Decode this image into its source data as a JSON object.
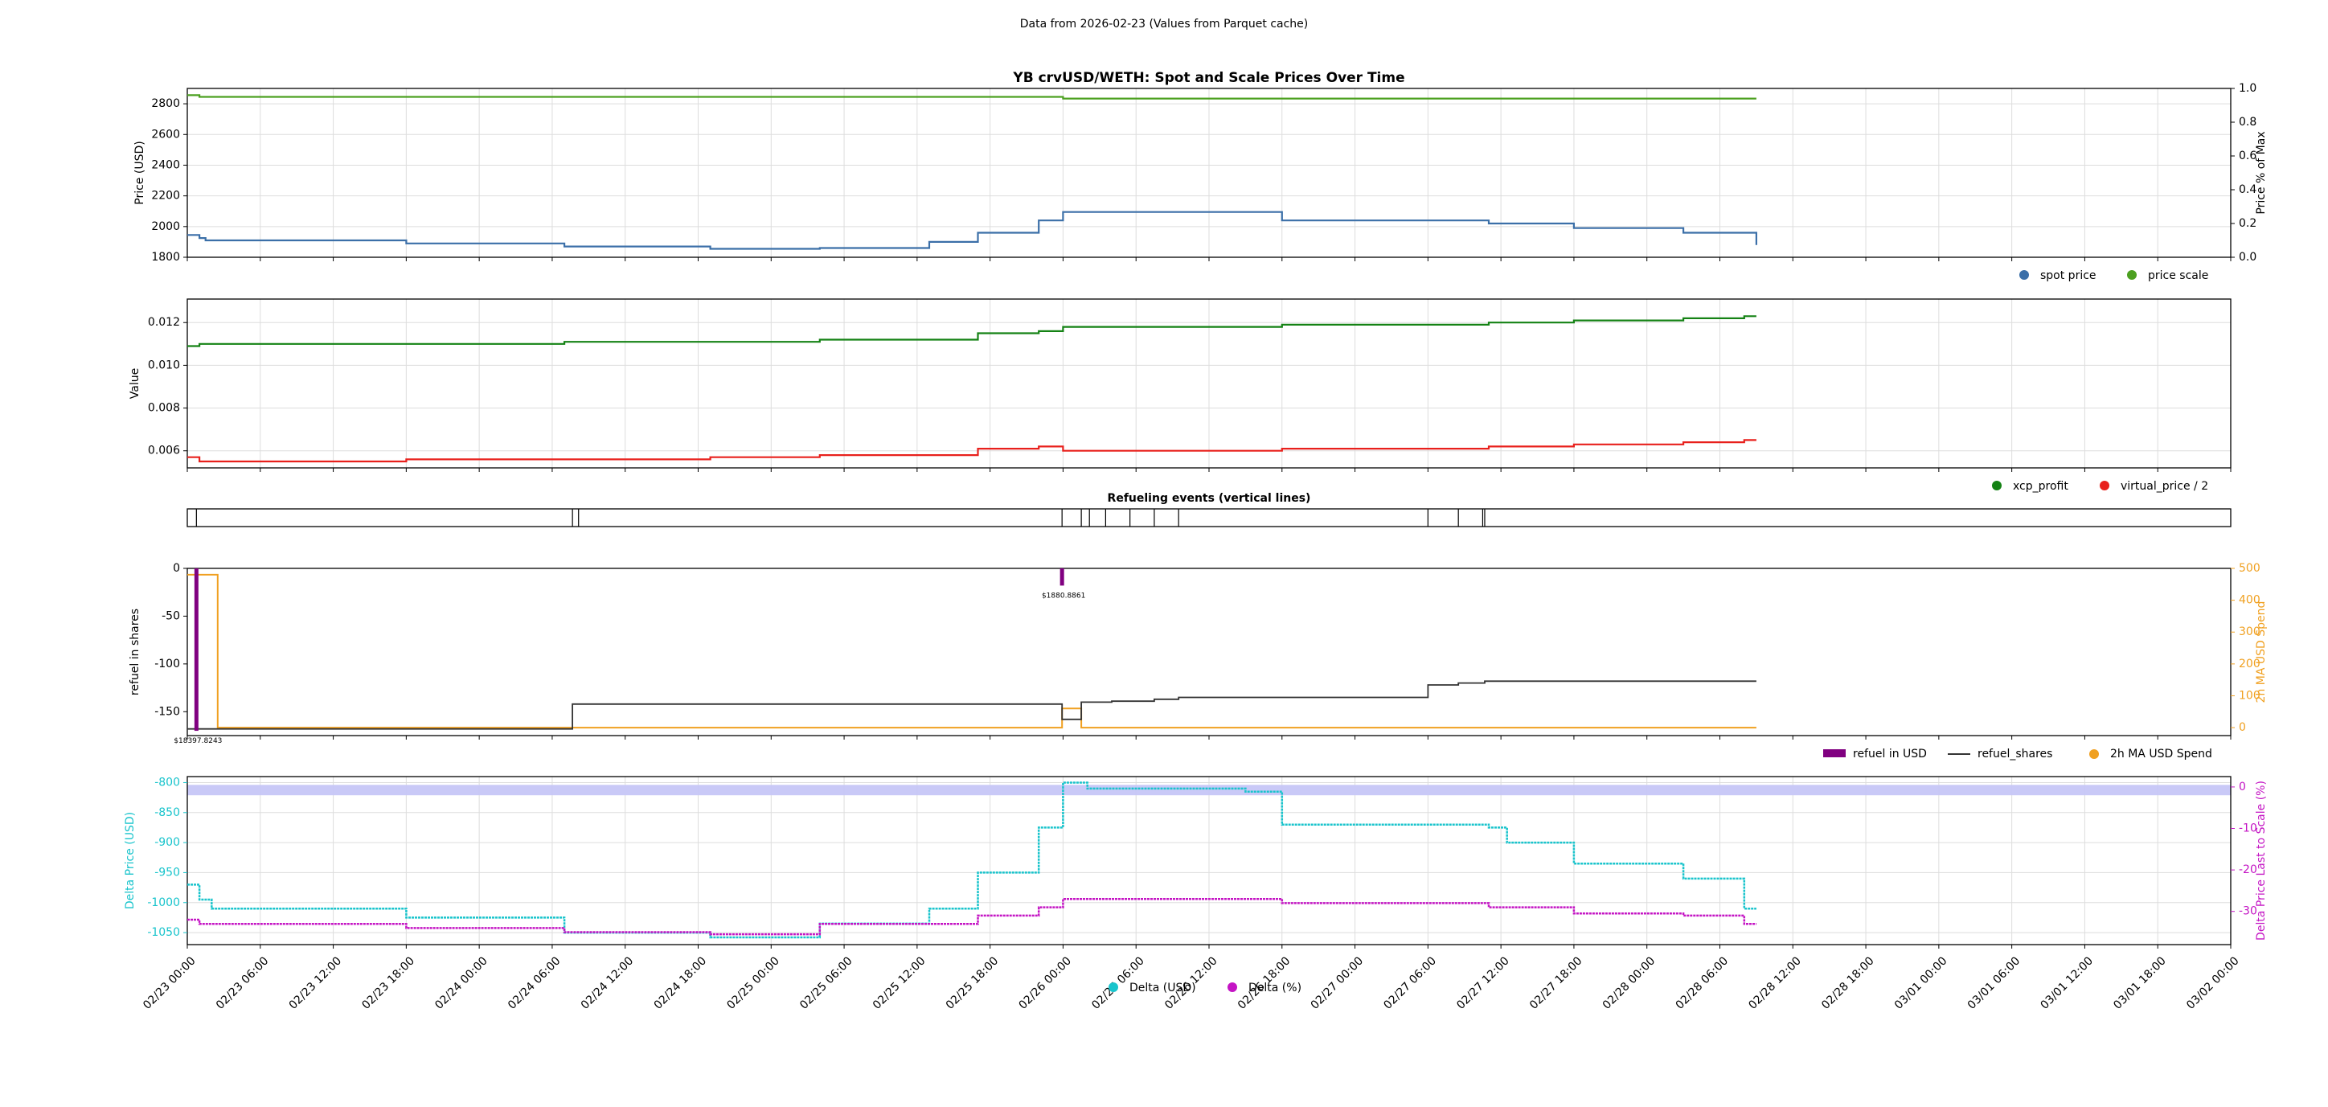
{
  "header": {
    "data_note": "Data from 2026-02-23 (Values from Parquet cache)"
  },
  "colors": {
    "spot": "#3b6fa8",
    "scale": "#4ca020",
    "xcp": "#148214",
    "vprice": "#e8201c",
    "refuel_usd": "#800080",
    "refuel_shares": "#333333",
    "ma": "#f0a020",
    "delta_usd": "#19c4cc",
    "delta_pct": "#c414c4",
    "band": "#c6c6f7",
    "axis": "#000000",
    "grid": "#dddddd"
  },
  "time_axis": {
    "start": "2026-02-23T00:00",
    "end": "2026-03-02T00:00",
    "tick_labels": [
      "02/23 00:00",
      "02/23 06:00",
      "02/23 12:00",
      "02/23 18:00",
      "02/24 00:00",
      "02/24 06:00",
      "02/24 12:00",
      "02/24 18:00",
      "02/25 00:00",
      "02/25 06:00",
      "02/25 12:00",
      "02/25 18:00",
      "02/26 00:00",
      "02/26 06:00",
      "02/26 12:00",
      "02/26 18:00",
      "02/27 00:00",
      "02/27 06:00",
      "02/27 12:00",
      "02/27 18:00",
      "02/28 00:00",
      "02/28 06:00",
      "02/28 12:00",
      "02/28 18:00",
      "03/01 00:00",
      "03/01 06:00",
      "03/01 12:00",
      "03/01 18:00",
      "03/02 00:00"
    ]
  },
  "chart_data": [
    {
      "type": "line",
      "title": "YB crvUSD/WETH: Spot and Scale Prices Over Time",
      "ylabel": "Price (USD)",
      "ylim": [
        1800,
        2900
      ],
      "yticks": [
        "1800",
        "2000",
        "2200",
        "2400",
        "2600",
        "2800"
      ],
      "y2label": "Price % of Max",
      "y2lim": [
        0,
        1
      ],
      "y2ticks": [
        "0.0",
        "0.2",
        "0.4",
        "0.6",
        "0.8",
        "1.0"
      ],
      "grid": true,
      "legend": [
        "spot price",
        "price scale"
      ],
      "legend_position": "bottom-right",
      "series": [
        {
          "name": "spot price",
          "axis": "left",
          "x": [
            "02/23 00:00",
            "02/23 01:00",
            "02/23 01:30",
            "02/23 18:00",
            "02/24 07:00",
            "02/24 19:00",
            "02/25 04:00",
            "02/25 13:00",
            "02/25 17:00",
            "02/25 22:00",
            "02/26 00:00",
            "02/26 18:00",
            "02/27 11:00",
            "02/27 18:00",
            "02/28 03:00",
            "02/28 09:00"
          ],
          "values": [
            1945,
            1925,
            1910,
            1890,
            1870,
            1855,
            1860,
            1900,
            1960,
            2040,
            2095,
            2040,
            2020,
            1990,
            1960,
            1880
          ]
        },
        {
          "name": "price scale",
          "axis": "right",
          "x": [
            "02/23 00:00",
            "02/23 01:00",
            "02/26 00:00",
            "02/28 09:00"
          ],
          "values": [
            0.96,
            0.95,
            0.94,
            0.94
          ]
        }
      ]
    },
    {
      "type": "line",
      "ylabel": "Value",
      "ylim": [
        0.0052,
        0.0131
      ],
      "yticks": [
        "0.006",
        "0.008",
        "0.010",
        "0.012"
      ],
      "grid": true,
      "legend": [
        "xcp_profit",
        "virtual_price / 2"
      ],
      "legend_position": "bottom-right",
      "series": [
        {
          "name": "xcp_profit",
          "x": [
            "02/23 00:00",
            "02/23 01:00",
            "02/23 18:00",
            "02/24 07:00",
            "02/24 19:00",
            "02/25 04:00",
            "02/25 13:00",
            "02/25 17:00",
            "02/25 22:00",
            "02/26 00:00",
            "02/26 18:00",
            "02/27 11:00",
            "02/27 18:00",
            "02/28 03:00",
            "02/28 08:00",
            "02/28 09:00"
          ],
          "values": [
            0.0109,
            0.011,
            0.011,
            0.0111,
            0.0111,
            0.0112,
            0.0112,
            0.0115,
            0.0116,
            0.0118,
            0.0119,
            0.012,
            0.0121,
            0.0122,
            0.0123,
            0.0123
          ]
        },
        {
          "name": "virtual_price / 2",
          "x": [
            "02/23 00:00",
            "02/23 01:00",
            "02/23 18:00",
            "02/24 07:00",
            "02/24 19:00",
            "02/25 04:00",
            "02/25 13:00",
            "02/25 17:00",
            "02/25 22:00",
            "02/26 00:00",
            "02/26 18:00",
            "02/27 11:00",
            "02/27 18:00",
            "02/28 03:00",
            "02/28 08:00",
            "02/28 09:00"
          ],
          "values": [
            0.0057,
            0.0055,
            0.0056,
            0.0056,
            0.0057,
            0.0058,
            0.0058,
            0.0061,
            0.0062,
            0.006,
            0.0061,
            0.0062,
            0.0063,
            0.0064,
            0.0065,
            0.0065
          ]
        }
      ]
    },
    {
      "type": "line",
      "title": "Refueling events (vertical lines)",
      "events": [
        "02/23 00:45",
        "02/24 07:40",
        "02/24 08:10",
        "02/25 23:55",
        "02/26 01:30",
        "02/26 02:10",
        "02/26 03:30",
        "02/26 05:30",
        "02/26 07:30",
        "02/26 09:30",
        "02/27 06:00",
        "02/27 08:30",
        "02/27 10:30",
        "02/27 10:40"
      ]
    },
    {
      "type": "line",
      "ylabel": "refuel in shares",
      "ylim": [
        -175,
        0
      ],
      "yticks": [
        "0",
        "-50",
        "-100",
        "-150"
      ],
      "y2label": "2h MA USD Spend",
      "y2lim": [
        -25,
        500
      ],
      "y2ticks": [
        "0",
        "100",
        "200",
        "300",
        "400",
        "500"
      ],
      "grid": false,
      "legend": [
        "refuel in USD",
        "refuel_shares",
        "2h MA USD Spend"
      ],
      "legend_position": "bottom-right",
      "annotations": [
        "$18397.8243",
        "$1880.8861"
      ],
      "series": [
        {
          "name": "refuel in USD",
          "type": "bar",
          "x": [
            "02/23 00:45",
            "02/25 23:55"
          ],
          "values": [
            -170,
            -18
          ]
        },
        {
          "name": "refuel_shares",
          "x": [
            "02/23 00:00",
            "02/24 07:40",
            "02/25 23:55",
            "02/26 01:30",
            "02/26 04:00",
            "02/26 07:30",
            "02/26 09:30",
            "02/27 06:00",
            "02/27 08:30",
            "02/27 10:40",
            "02/28 09:00"
          ],
          "values": [
            -168,
            -142,
            -158,
            -140,
            -139,
            -137,
            -135,
            -122,
            -120,
            -118,
            -118
          ]
        },
        {
          "name": "2h MA USD Spend",
          "axis": "right",
          "x": [
            "02/23 00:00",
            "02/23 01:00",
            "02/23 02:30",
            "02/25 23:55",
            "02/26 01:30",
            "02/28 09:00"
          ],
          "values": [
            480,
            480,
            0,
            60,
            0,
            0
          ]
        }
      ]
    },
    {
      "type": "scatter",
      "ylabel": "Delta Price (USD)",
      "ylim": [
        -1070,
        -790
      ],
      "yticks": [
        "-800",
        "-850",
        "-900",
        "-950",
        "-1000",
        "-1050"
      ],
      "y2label": "Delta Price Last to Scale (%)",
      "y2lim": [
        -38,
        2.5
      ],
      "y2ticks": [
        "0",
        "-10",
        "-20",
        "-30"
      ],
      "band": [
        -2,
        0.5
      ],
      "grid": true,
      "legend": [
        "Delta (USD)",
        "Delta (%)"
      ],
      "legend_position": "bottom-center",
      "series": [
        {
          "name": "Delta (USD)",
          "x": [
            "02/23 00:00",
            "02/23 01:00",
            "02/23 02:00",
            "02/23 18:00",
            "02/24 07:00",
            "02/24 19:00",
            "02/25 04:00",
            "02/25 13:00",
            "02/25 17:00",
            "02/25 22:00",
            "02/26 00:00",
            "02/26 02:00",
            "02/26 15:00",
            "02/26 18:00",
            "02/27 11:00",
            "02/27 12:30",
            "02/27 18:00",
            "02/28 03:00",
            "02/28 08:00",
            "02/28 09:00"
          ],
          "values": [
            -970,
            -995,
            -1010,
            -1025,
            -1050,
            -1058,
            -1035,
            -1010,
            -950,
            -875,
            -800,
            -810,
            -815,
            -870,
            -875,
            -900,
            -935,
            -960,
            -1010,
            -1010
          ]
        },
        {
          "name": "Delta (%)",
          "axis": "right",
          "x": [
            "02/23 00:00",
            "02/23 01:00",
            "02/23 18:00",
            "02/24 07:00",
            "02/24 19:00",
            "02/25 04:00",
            "02/25 13:00",
            "02/25 17:00",
            "02/25 22:00",
            "02/26 00:00",
            "02/26 18:00",
            "02/27 11:00",
            "02/27 18:00",
            "02/28 03:00",
            "02/28 08:00",
            "02/28 09:00"
          ],
          "values": [
            -32,
            -33,
            -34,
            -35,
            -35.5,
            -33,
            -33,
            -31,
            -29,
            -27,
            -28,
            -29,
            -30.5,
            -31,
            -33,
            -33
          ]
        }
      ]
    }
  ]
}
